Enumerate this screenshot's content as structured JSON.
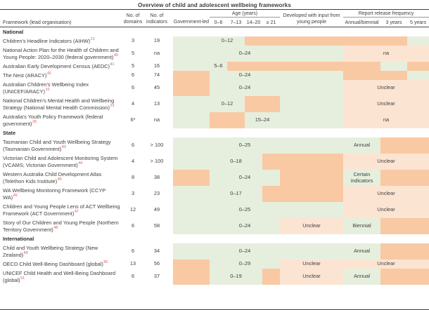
{
  "title": "Overview of child and adolescent wellbeing frameworks",
  "colors": {
    "yes": "#e6efdd",
    "no": "#f9c9a3",
    "note": "#fce4d3",
    "ref": "#e0584a",
    "text": "#3f3f3f"
  },
  "header": {
    "framework": "Framework (lead organisation)",
    "domains": "No. of\ndomains",
    "indicators": "No. of\nindicators",
    "government_led": "Government-led",
    "age_group": "Age (years)",
    "age_cols": [
      "0–6",
      "7–13",
      "14–20",
      "≥ 21"
    ],
    "developed": "Developed with input from\nyoung people",
    "report_group": "Report release frequency",
    "report_cols": [
      "Annual/biennial",
      "3 years",
      "5 years"
    ]
  },
  "legend": {
    "yes_meaning": "applies (green)",
    "no_meaning": "does not apply (orange)",
    "note_meaning": "text note (pale)"
  },
  "sections": [
    {
      "label": "National",
      "rows": [
        {
          "name": "Children's Headline Indicators (AIHW)",
          "ref": "21",
          "domains": "3",
          "indicators": "19",
          "gov": "yes",
          "age": [
            {
              "span": 2,
              "type": "yes",
              "label": "0–12"
            },
            {
              "span": 2,
              "type": "no",
              "label": ""
            }
          ],
          "dev": {
            "type": "no",
            "label": ""
          },
          "rep": [
            {
              "span": 2,
              "type": "no",
              "label": ""
            },
            {
              "span": 1,
              "type": "yes",
              "label": ""
            }
          ]
        },
        {
          "name": "National Action Plan for the Health of Children and Young People: 2020–2030 (federal government)",
          "ref": "40",
          "domains": "5",
          "indicators": "na",
          "gov": "yes",
          "age": [
            {
              "span": 4,
              "type": "yes",
              "label": "0–24"
            }
          ],
          "dev": {
            "type": "yes",
            "label": ""
          },
          "rep": [
            {
              "span": 3,
              "type": "note",
              "label": "na"
            }
          ]
        },
        {
          "name": "Australian Early Development Census (AEDC)",
          "ref": "41",
          "domains": "5",
          "indicators": "16",
          "gov": "yes",
          "age": [
            {
              "span": 1,
              "type": "yes",
              "label": "5–6"
            },
            {
              "span": 3,
              "type": "no",
              "label": ""
            }
          ],
          "dev": {
            "type": "no",
            "label": ""
          },
          "rep": [
            {
              "span": 1,
              "type": "no",
              "label": ""
            },
            {
              "span": 1,
              "type": "yes",
              "label": ""
            },
            {
              "span": 1,
              "type": "no",
              "label": ""
            }
          ]
        },
        {
          "name": "The Nest (ARACY)",
          "ref": "42",
          "domains": "6",
          "indicators": "74",
          "gov": "no",
          "age": [
            {
              "span": 4,
              "type": "yes",
              "label": "0–24"
            }
          ],
          "dev": {
            "type": "yes",
            "label": ""
          },
          "rep": [
            {
              "span": 2,
              "type": "no",
              "label": ""
            },
            {
              "span": 1,
              "type": "yes",
              "label": ""
            }
          ]
        },
        {
          "name": "Australian Children's Wellbeing Index (UNICEF/ARACY)",
          "ref": "10",
          "domains": "6",
          "indicators": "45",
          "gov": "no",
          "age": [
            {
              "span": 4,
              "type": "yes",
              "label": "0–24"
            }
          ],
          "dev": {
            "type": "yes",
            "label": ""
          },
          "rep": [
            {
              "span": 3,
              "type": "note",
              "label": "Unclear"
            }
          ]
        },
        {
          "name": "National Children's Mental Health and Wellbeing Strategy (National Mental Health Commission)",
          "ref": "23",
          "domains": "4",
          "indicators": "13",
          "gov": "yes",
          "age": [
            {
              "span": 2,
              "type": "yes",
              "label": "0–12"
            },
            {
              "span": 2,
              "type": "no",
              "label": ""
            }
          ],
          "dev": {
            "type": "yes",
            "label": ""
          },
          "rep": [
            {
              "span": 3,
              "type": "note",
              "label": "Unclear"
            }
          ]
        },
        {
          "name": "Australia's Youth Policy Framework (federal government)",
          "ref": "26",
          "domains": "6*",
          "indicators": "na",
          "gov": "yes",
          "age": [
            {
              "span": 2,
              "type": "no",
              "label": ""
            },
            {
              "span": 2,
              "type": "yes",
              "label": "15–24"
            }
          ],
          "dev": {
            "type": "yes",
            "label": ""
          },
          "rep": [
            {
              "span": 3,
              "type": "note",
              "label": "na"
            }
          ]
        }
      ]
    },
    {
      "label": "State",
      "rows": [
        {
          "name": "Tasmanian Child and Youth Wellbeing Strategy (Tasmanian Government)",
          "ref": "43",
          "domains": "6",
          "indicators": "> 100",
          "gov": "yes",
          "age": [
            {
              "span": 4,
              "type": "yes",
              "label": "0–25"
            }
          ],
          "dev": {
            "type": "yes",
            "label": ""
          },
          "rep": [
            {
              "span": 1,
              "type": "yes",
              "label": "Annual"
            },
            {
              "span": 2,
              "type": "no",
              "label": ""
            }
          ]
        },
        {
          "name": "Victorian Child and Adolescent Monitoring System (VCAMS; Victorian Government)",
          "ref": "44",
          "domains": "4",
          "indicators": "> 100",
          "gov": "yes",
          "age": [
            {
              "span": 3,
              "type": "yes",
              "label": "0–18"
            },
            {
              "span": 1,
              "type": "no",
              "label": ""
            }
          ],
          "dev": {
            "type": "no",
            "label": ""
          },
          "rep": [
            {
              "span": 3,
              "type": "note",
              "label": "Unclear"
            }
          ]
        },
        {
          "name": "Western Australia Child Development Atlas (Telethon Kids Institute)",
          "ref": "45",
          "domains": "8",
          "indicators": "38",
          "gov": "no",
          "age": [
            {
              "span": 4,
              "type": "yes",
              "label": "0–24"
            }
          ],
          "dev": {
            "type": "no",
            "label": ""
          },
          "rep": [
            {
              "span": 1,
              "type": "yes",
              "label": "Certain indicators"
            },
            {
              "span": 2,
              "type": "no",
              "label": ""
            }
          ]
        },
        {
          "name": "WA Wellbeing Monitoring Framework (CCYP WA)",
          "ref": "46",
          "domains": "3",
          "indicators": "23",
          "gov": "yes",
          "age": [
            {
              "span": 3,
              "type": "yes",
              "label": "0–17"
            },
            {
              "span": 1,
              "type": "no",
              "label": ""
            }
          ],
          "dev": {
            "type": "no",
            "label": ""
          },
          "rep": [
            {
              "span": 3,
              "type": "note",
              "label": "Unclear"
            }
          ]
        },
        {
          "name": "Children and Young People Lens of ACT Wellbeing Framework (ACT Government)",
          "ref": "47",
          "domains": "12",
          "indicators": "49",
          "gov": "yes",
          "age": [
            {
              "span": 4,
              "type": "yes",
              "label": "0–25"
            }
          ],
          "dev": {
            "type": "yes",
            "label": ""
          },
          "rep": [
            {
              "span": 3,
              "type": "note",
              "label": "Unclear"
            }
          ]
        },
        {
          "name": "Story of Our Children and Young People (Northern Territory Government)",
          "ref": "48",
          "domains": "6",
          "indicators": "58",
          "gov": "yes",
          "age": [
            {
              "span": 4,
              "type": "yes",
              "label": "0–24"
            }
          ],
          "dev": {
            "type": "note",
            "label": "Unclear"
          },
          "rep": [
            {
              "span": 1,
              "type": "yes",
              "label": "Biennial"
            },
            {
              "span": 2,
              "type": "no",
              "label": ""
            }
          ]
        }
      ]
    },
    {
      "label": "International",
      "rows": [
        {
          "name": "Child and Youth Wellbeing Strategy (New Zealand)",
          "ref": "49",
          "domains": "6",
          "indicators": "34",
          "gov": "yes",
          "age": [
            {
              "span": 4,
              "type": "yes",
              "label": "0–24"
            }
          ],
          "dev": {
            "type": "yes",
            "label": ""
          },
          "rep": [
            {
              "span": 1,
              "type": "yes",
              "label": "Annual"
            },
            {
              "span": 2,
              "type": "no",
              "label": ""
            }
          ]
        },
        {
          "name": "OECD Child Well-Being Dashboard (global)",
          "ref": "50",
          "domains": "13",
          "indicators": "56",
          "gov": "no",
          "age": [
            {
              "span": 4,
              "type": "yes",
              "label": "0–29"
            }
          ],
          "dev": {
            "type": "note",
            "label": "Unclear"
          },
          "rep": [
            {
              "span": 3,
              "type": "note",
              "label": "Unclear"
            }
          ]
        },
        {
          "name": "UNICEF Child Health and Well-Being Dashboard (global)",
          "ref": "51",
          "domains": "6",
          "indicators": "37",
          "gov": "no",
          "age": [
            {
              "span": 3,
              "type": "yes",
              "label": "0–19"
            },
            {
              "span": 1,
              "type": "no",
              "label": ""
            }
          ],
          "dev": {
            "type": "note",
            "label": "Unclear"
          },
          "rep": [
            {
              "span": 1,
              "type": "yes",
              "label": "Annual"
            },
            {
              "span": 2,
              "type": "no",
              "label": ""
            }
          ]
        }
      ]
    }
  ]
}
